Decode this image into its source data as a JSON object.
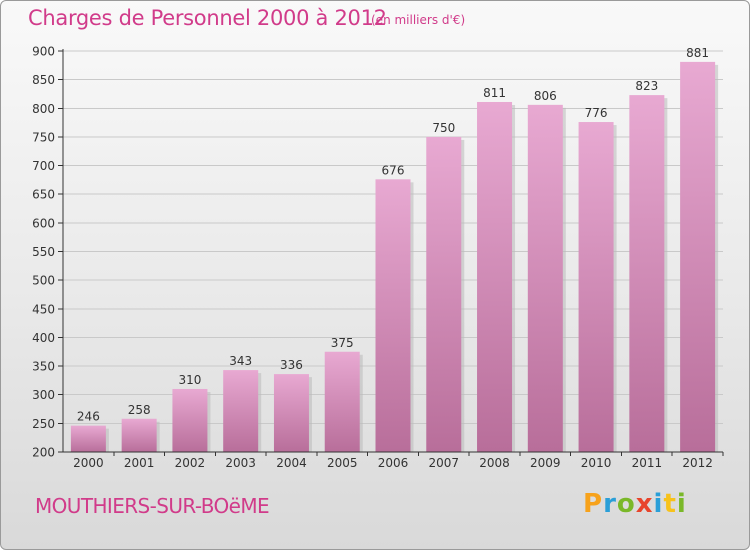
{
  "header": {
    "title": "Charges de Personnel 2000 à 2012",
    "unit_note": "(en milliers d'€)"
  },
  "footer": {
    "commune": "MOUTHIERS-SUR-BOëME",
    "brand": "Proxiti",
    "brand_colors": [
      "#f7a21b",
      "#2a9fd8",
      "#7ab829",
      "#e8452c",
      "#2a9fd8",
      "#f7c21b",
      "#7ab829"
    ]
  },
  "colors": {
    "bar_top": "#e8a9d2",
    "bar_bottom": "#b86e9a",
    "grid": "#c9c9c9",
    "axis": "#333333",
    "accent": "#d13b8a"
  },
  "chart_data": {
    "type": "bar",
    "title": "Charges de Personnel 2000 à 2012",
    "subtitle": "(en milliers d'€)",
    "xlabel": "",
    "ylabel": "",
    "categories": [
      "2000",
      "2001",
      "2002",
      "2003",
      "2004",
      "2005",
      "2006",
      "2007",
      "2008",
      "2009",
      "2010",
      "2011",
      "2012"
    ],
    "values": [
      246,
      258,
      310,
      343,
      336,
      375,
      676,
      750,
      811,
      806,
      776,
      823,
      881
    ],
    "ylim": [
      200,
      900
    ],
    "yticks": [
      200,
      250,
      300,
      350,
      400,
      450,
      500,
      550,
      600,
      650,
      700,
      750,
      800,
      850,
      900
    ],
    "grid": true,
    "legend": "none"
  }
}
